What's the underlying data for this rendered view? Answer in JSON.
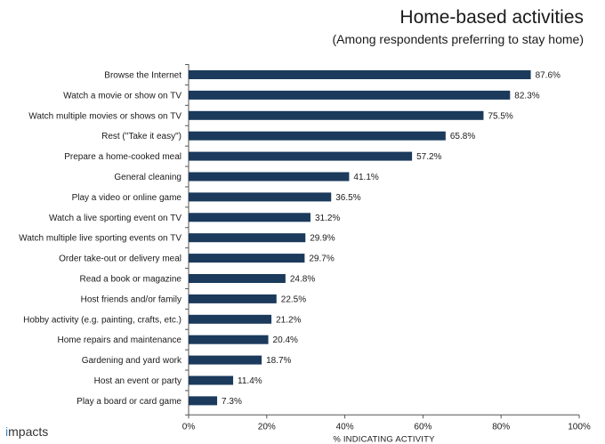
{
  "chart_data": {
    "type": "bar",
    "orientation": "horizontal",
    "title": "Home-based activities",
    "subtitle": "(Among respondents preferring to stay home)",
    "xlabel": "% INDICATING ACTIVITY",
    "ylabel": "",
    "xlim": [
      0,
      100
    ],
    "x_ticks": [
      "0%",
      "20%",
      "40%",
      "60%",
      "80%",
      "100%"
    ],
    "grid": false,
    "bar_color": "#1b3a5c",
    "categories": [
      "Browse the Internet",
      "Watch a movie or show on TV",
      "Watch multiple movies or shows on TV",
      "Rest (\"Take it easy\")",
      "Prepare a home-cooked meal",
      "General cleaning",
      "Play a video or online game",
      "Watch a live sporting event on TV",
      "Watch multiple live sporting events on TV",
      "Order take-out or delivery meal",
      "Read a book or magazine",
      "Host friends and/or family",
      "Hobby activity (e.g. painting, crafts, etc.)",
      "Home repairs and maintenance",
      "Gardening and yard work",
      "Host an event or party",
      "Play a board or card game"
    ],
    "values": [
      87.6,
      82.3,
      75.5,
      65.8,
      57.2,
      41.1,
      36.5,
      31.2,
      29.9,
      29.7,
      24.8,
      22.5,
      21.2,
      20.4,
      18.7,
      11.4,
      7.3
    ],
    "value_labels": [
      "87.6%",
      "82.3%",
      "75.5%",
      "65.8%",
      "57.2%",
      "41.1%",
      "36.5%",
      "31.2%",
      "29.9%",
      "29.7%",
      "24.8%",
      "22.5%",
      "21.2%",
      "20.4%",
      "18.7%",
      "11.4%",
      "7.3%"
    ]
  },
  "branding": {
    "logo_prefix": "i",
    "logo_text": "mpacts",
    "logo_icon": "impacts-logo-icon"
  }
}
